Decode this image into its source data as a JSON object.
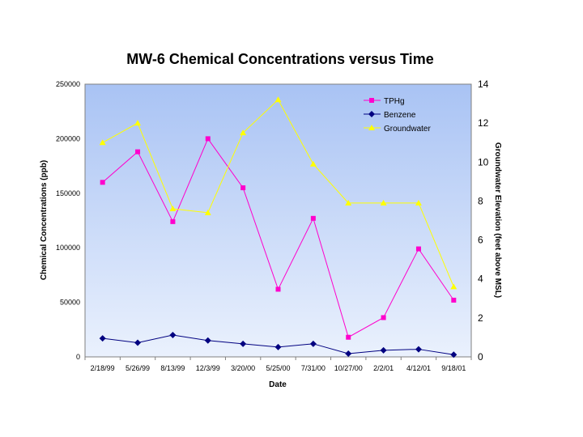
{
  "chart_data": {
    "type": "line",
    "title": "MW-6 Chemical Concentrations versus Time",
    "xlabel": "Date",
    "ylabel": "Chemical Concentrations (ppb)",
    "y2label": "Groundwater Elevation (feet above MSL)",
    "ylim": [
      0,
      250000
    ],
    "y2lim": [
      0,
      14
    ],
    "yticks": [
      "0",
      "50000",
      "100000",
      "150000",
      "200000",
      "250000"
    ],
    "y2ticks": [
      "0",
      "2",
      "4",
      "6",
      "8",
      "10",
      "12",
      "14"
    ],
    "categories": [
      "2/18/99",
      "5/26/99",
      "8/13/99",
      "12/3/99",
      "3/20/00",
      "5/25/00",
      "7/31/00",
      "10/27/00",
      "2/2/01",
      "4/12/01",
      "9/18/01"
    ],
    "legend_position": "top-right",
    "series": [
      {
        "name": "TPHg",
        "axis": "left",
        "color": "#ff00cc",
        "marker": "square",
        "values": [
          160000,
          188000,
          124000,
          200000,
          155000,
          62000,
          127000,
          18000,
          36000,
          99000,
          52000
        ]
      },
      {
        "name": "Benzene",
        "axis": "left",
        "color": "#000080",
        "marker": "diamond",
        "values": [
          17000,
          13000,
          20000,
          15000,
          12000,
          9000,
          12000,
          3000,
          6000,
          7000,
          2000
        ]
      },
      {
        "name": "Groundwater",
        "axis": "right",
        "color": "#ffff00",
        "marker": "triangle",
        "values": [
          11.0,
          12.0,
          7.6,
          7.4,
          11.5,
          13.2,
          9.9,
          7.9,
          7.9,
          7.9,
          3.6
        ]
      }
    ]
  }
}
